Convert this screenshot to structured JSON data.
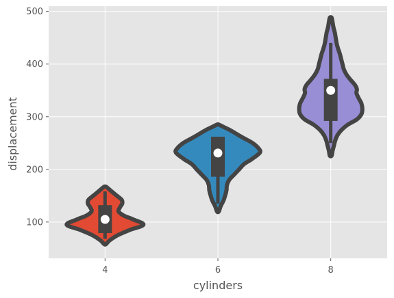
{
  "chart_data": {
    "type": "violin",
    "xlabel": "cylinders",
    "ylabel": "displacement",
    "ylim": [
      31,
      510
    ],
    "grid": true,
    "categories": [
      "4",
      "6",
      "8"
    ],
    "y_ticks": [
      100,
      200,
      300,
      400,
      500
    ],
    "y_tick_labels": [
      "100",
      "200",
      "300",
      "400",
      "500"
    ],
    "violins": [
      {
        "category": "4",
        "color": "#e24a33",
        "kde_min": 58,
        "kde_max": 167,
        "profile": [
          [
            58,
            0.02
          ],
          [
            65,
            0.1
          ],
          [
            75,
            0.28
          ],
          [
            85,
            0.55
          ],
          [
            95,
            0.85
          ],
          [
            105,
            0.62
          ],
          [
            112,
            0.42
          ],
          [
            120,
            0.3
          ],
          [
            128,
            0.33
          ],
          [
            135,
            0.38
          ],
          [
            142,
            0.37
          ],
          [
            150,
            0.26
          ],
          [
            157,
            0.16
          ],
          [
            163,
            0.08
          ],
          [
            167,
            0.02
          ]
        ],
        "whisker": [
          68,
          158
        ],
        "q1": 79,
        "median": 105,
        "q3": 132
      },
      {
        "category": "6",
        "color": "#348abd",
        "kde_min": 120,
        "kde_max": 285,
        "profile": [
          [
            120,
            0.02
          ],
          [
            130,
            0.06
          ],
          [
            140,
            0.12
          ],
          [
            150,
            0.16
          ],
          [
            160,
            0.19
          ],
          [
            170,
            0.2
          ],
          [
            180,
            0.25
          ],
          [
            190,
            0.36
          ],
          [
            200,
            0.47
          ],
          [
            210,
            0.58
          ],
          [
            220,
            0.76
          ],
          [
            232,
            0.93
          ],
          [
            240,
            0.9
          ],
          [
            250,
            0.77
          ],
          [
            260,
            0.56
          ],
          [
            268,
            0.4
          ],
          [
            275,
            0.26
          ],
          [
            280,
            0.14
          ],
          [
            285,
            0.02
          ]
        ],
        "whisker": [
          135,
          262
        ],
        "q1": 186,
        "median": 231,
        "q3": 262
      },
      {
        "category": "8",
        "color": "#988ed5",
        "kde_min": 226,
        "kde_max": 488,
        "profile": [
          [
            226,
            0.02
          ],
          [
            235,
            0.04
          ],
          [
            245,
            0.07
          ],
          [
            255,
            0.1
          ],
          [
            265,
            0.15
          ],
          [
            275,
            0.24
          ],
          [
            285,
            0.38
          ],
          [
            295,
            0.58
          ],
          [
            305,
            0.68
          ],
          [
            315,
            0.7
          ],
          [
            325,
            0.68
          ],
          [
            335,
            0.62
          ],
          [
            345,
            0.57
          ],
          [
            352,
            0.58
          ],
          [
            360,
            0.54
          ],
          [
            370,
            0.44
          ],
          [
            380,
            0.35
          ],
          [
            390,
            0.29
          ],
          [
            400,
            0.26
          ],
          [
            410,
            0.23
          ],
          [
            420,
            0.2
          ],
          [
            430,
            0.16
          ],
          [
            440,
            0.13
          ],
          [
            450,
            0.11
          ],
          [
            460,
            0.09
          ],
          [
            470,
            0.06
          ],
          [
            480,
            0.04
          ],
          [
            488,
            0.02
          ]
        ],
        "whisker": [
          250,
          440
        ],
        "q1": 292,
        "median": 350,
        "q3": 372
      }
    ]
  }
}
